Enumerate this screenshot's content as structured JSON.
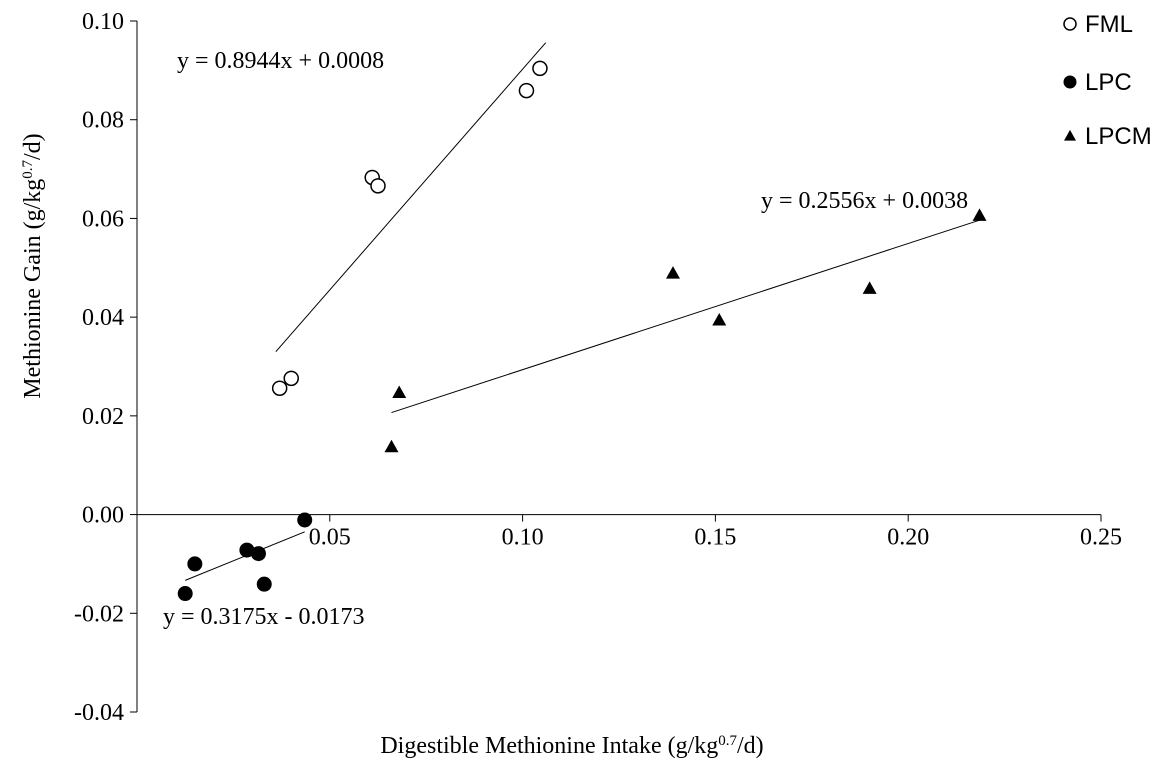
{
  "chart_data": {
    "type": "scatter",
    "title": "",
    "xlabel": {
      "pre": "Digestible Methionine Intake (g/kg",
      "sup": "0.7",
      "post": "/d)"
    },
    "ylabel": {
      "pre": "Methionine Gain (g/kg",
      "sup": "0.7",
      "post": "/d)"
    },
    "xlim": [
      0,
      0.25
    ],
    "ylim": [
      -0.04,
      0.1
    ],
    "x_ticks": [
      0.05,
      0.1,
      0.15,
      0.2,
      0.25
    ],
    "x_tick_labels": [
      "0.05",
      "0.10",
      "0.15",
      "0.20",
      "0.25"
    ],
    "y_ticks": [
      -0.04,
      -0.02,
      0.0,
      0.02,
      0.04,
      0.06,
      0.08,
      0.1
    ],
    "y_tick_labels": [
      "-0.04",
      "-0.02",
      "0.00",
      "0.02",
      "0.04",
      "0.06",
      "0.08",
      "0.10"
    ],
    "grid": false,
    "legend_position": "top-right",
    "series": [
      {
        "name": "FML",
        "marker": "open-circle",
        "color": "#000000",
        "points": [
          [
            0.037,
            0.0256
          ],
          [
            0.04,
            0.0276
          ],
          [
            0.061,
            0.0683
          ],
          [
            0.0625,
            0.0666
          ],
          [
            0.101,
            0.0859
          ],
          [
            0.1045,
            0.0904
          ]
        ],
        "trendline": {
          "slope": 0.8944,
          "intercept": 0.0008,
          "x_range": [
            0.036,
            0.106
          ],
          "equation": "y = 0.8944x + 0.0008"
        }
      },
      {
        "name": "LPC",
        "marker": "filled-circle",
        "color": "#000000",
        "points": [
          [
            0.0125,
            -0.016
          ],
          [
            0.015,
            -0.01
          ],
          [
            0.0285,
            -0.0072
          ],
          [
            0.0315,
            -0.0079
          ],
          [
            0.033,
            -0.0141
          ],
          [
            0.0435,
            -0.0011
          ]
        ],
        "trendline": {
          "slope": 0.3175,
          "intercept": -0.0173,
          "x_range": [
            0.0125,
            0.0435
          ],
          "equation": "y = 0.3175x - 0.0173"
        }
      },
      {
        "name": "LPCM",
        "marker": "filled-triangle",
        "color": "#000000",
        "points": [
          [
            0.066,
            0.0137
          ],
          [
            0.068,
            0.0247
          ],
          [
            0.139,
            0.0489
          ],
          [
            0.151,
            0.0394
          ],
          [
            0.19,
            0.0458
          ],
          [
            0.2185,
            0.0606
          ]
        ],
        "trendline": {
          "slope": 0.2556,
          "intercept": 0.0038,
          "x_range": [
            0.066,
            0.2185
          ],
          "equation": "y = 0.2556x + 0.0038"
        }
      }
    ]
  }
}
